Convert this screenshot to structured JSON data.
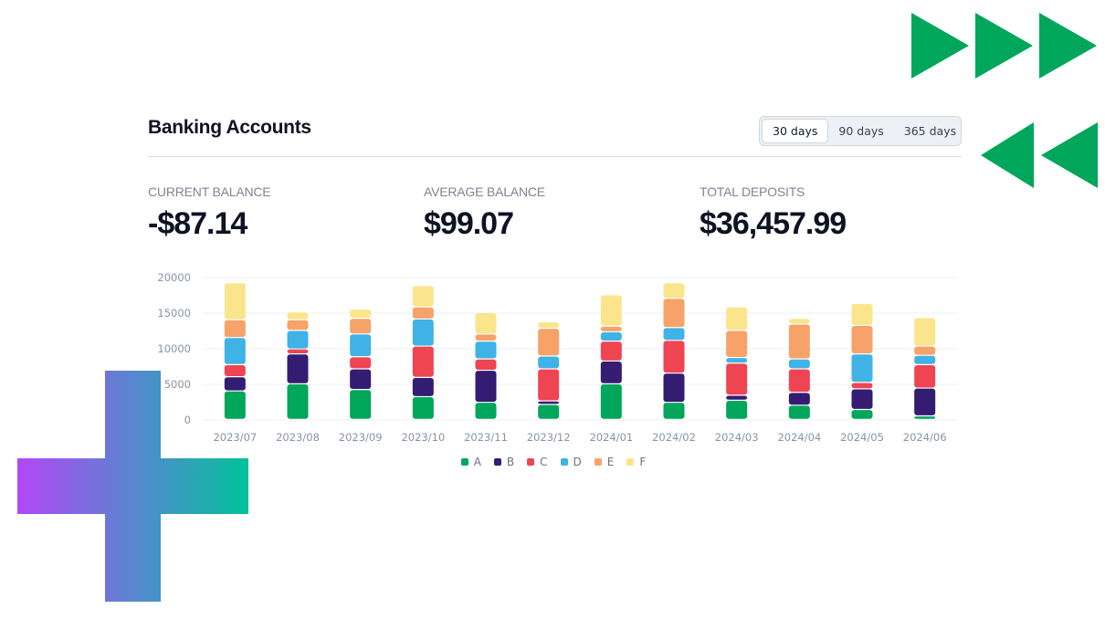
{
  "header": {
    "title": "Banking Accounts"
  },
  "range": {
    "options": [
      "30 days",
      "90 days",
      "365 days"
    ],
    "selected": "30 days"
  },
  "stats": [
    {
      "label": "CURRENT BALANCE",
      "value": "-$87.14"
    },
    {
      "label": "AVERAGE BALANCE",
      "value": "$99.07"
    },
    {
      "label": "TOTAL DEPOSITS",
      "value": "$36,457.99"
    }
  ],
  "decorations": {
    "fast_forward_icon": "fast-forward-icon",
    "rewind_icon": "rewind-icon",
    "plus_icon": "plus-icon",
    "accent_green": "#00a65a",
    "plus_gradient": [
      "#b347f5",
      "#00c29a"
    ]
  },
  "chart_data": {
    "type": "bar",
    "stacked": true,
    "categories": [
      "2023/07",
      "2023/08",
      "2023/09",
      "2023/10",
      "2023/11",
      "2023/12",
      "2024/01",
      "2024/02",
      "2024/03",
      "2024/04",
      "2024/05",
      "2024/06"
    ],
    "y_ticks": [
      "0",
      "5000",
      "10000",
      "15000",
      "20000"
    ],
    "ylim": [
      0,
      20000
    ],
    "grid": true,
    "legend": "bottom",
    "series": [
      {
        "name": "A",
        "color": "#00a65a",
        "values": [
          4000,
          5000,
          4200,
          3200,
          2400,
          2100,
          5000,
          2400,
          2700,
          2000,
          1400,
          500
        ]
      },
      {
        "name": "B",
        "color": "#341c72",
        "values": [
          2000,
          4200,
          2900,
          2700,
          4500,
          500,
          3200,
          4100,
          700,
          1800,
          2900,
          3900
        ]
      },
      {
        "name": "C",
        "color": "#ef4452",
        "values": [
          1700,
          700,
          1700,
          4400,
          1600,
          4500,
          2800,
          4600,
          4500,
          3300,
          900,
          3300
        ]
      },
      {
        "name": "D",
        "color": "#3fb3e6",
        "values": [
          3800,
          2600,
          3200,
          3800,
          2500,
          1800,
          1300,
          1800,
          800,
          1400,
          4000,
          1300
        ]
      },
      {
        "name": "E",
        "color": "#f7a268",
        "values": [
          2500,
          1500,
          2200,
          1700,
          1000,
          3900,
          800,
          4100,
          3800,
          4900,
          4000,
          1300
        ]
      },
      {
        "name": "F",
        "color": "#fbe58c",
        "values": [
          5200,
          1100,
          1300,
          3000,
          3000,
          900,
          4400,
          2200,
          3300,
          800,
          3100,
          4000
        ]
      }
    ]
  }
}
